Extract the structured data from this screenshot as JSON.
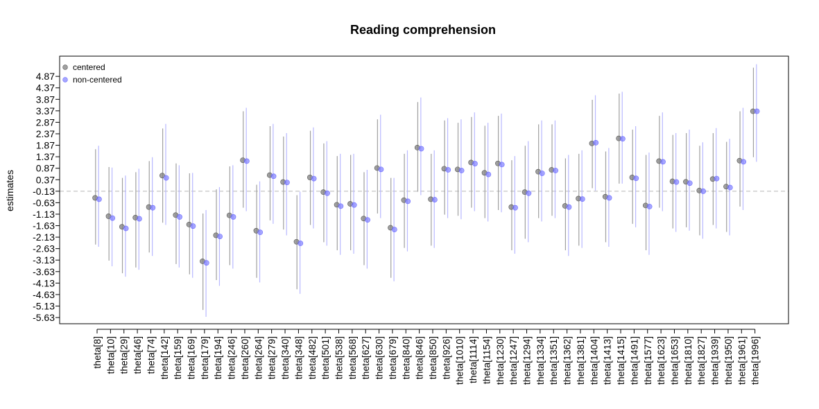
{
  "chart_data": {
    "type": "scatter",
    "title": "Reading comprehension",
    "xlabel": "",
    "ylabel": "estimates",
    "ylim": [
      -5.9,
      5.75
    ],
    "yticks": [
      "-5.63",
      "-5.13",
      "-4.63",
      "-4.13",
      "-3.63",
      "-3.13",
      "-2.63",
      "-2.13",
      "-1.63",
      "-1.13",
      "-0.63",
      "-0.13",
      "0.37",
      "0.87",
      "1.37",
      "1.87",
      "2.37",
      "2.87",
      "3.37",
      "3.87",
      "4.37",
      "4.87"
    ],
    "reference_line": -0.13,
    "legend_position": "top-left",
    "categories": [
      "theta[8]",
      "theta[10]",
      "theta[29]",
      "theta[46]",
      "theta[74]",
      "theta[142]",
      "theta[159]",
      "theta[169]",
      "theta[179]",
      "theta[194]",
      "theta[246]",
      "theta[260]",
      "theta[264]",
      "theta[279]",
      "theta[340]",
      "theta[348]",
      "theta[482]",
      "theta[501]",
      "theta[538]",
      "theta[568]",
      "theta[627]",
      "theta[630]",
      "theta[679]",
      "theta[840]",
      "theta[846]",
      "theta[850]",
      "theta[926]",
      "theta[1010]",
      "theta[1114]",
      "theta[1154]",
      "theta[1230]",
      "theta[1247]",
      "theta[1294]",
      "theta[1334]",
      "theta[1351]",
      "theta[1362]",
      "theta[1381]",
      "theta[1404]",
      "theta[1413]",
      "theta[1415]",
      "theta[1491]",
      "theta[1577]",
      "theta[1623]",
      "theta[1653]",
      "theta[1810]",
      "theta[1827]",
      "theta[1939]",
      "theta[1950]",
      "theta[1961]",
      "theta[1996]"
    ],
    "series": [
      {
        "name": "centered",
        "color": "#808080",
        "values": [
          -0.42,
          -1.22,
          -1.68,
          -1.28,
          -0.82,
          0.55,
          -1.17,
          -1.58,
          -3.18,
          -2.05,
          -1.18,
          1.22,
          -1.85,
          0.57,
          0.27,
          -2.33,
          0.47,
          -0.17,
          -0.72,
          -0.68,
          -1.32,
          0.88,
          -1.72,
          -0.52,
          1.77,
          -0.48,
          0.85,
          0.82,
          1.12,
          0.67,
          1.08,
          -0.82,
          -0.17,
          0.72,
          0.8,
          -0.77,
          -0.45,
          1.95,
          -0.37,
          2.17,
          0.47,
          -0.75,
          1.18,
          0.3,
          0.28,
          -0.1,
          0.4,
          0.07,
          1.2,
          3.35
        ],
        "lower": [
          -2.45,
          -3.15,
          -3.7,
          -3.45,
          -2.8,
          -1.5,
          -3.3,
          -3.75,
          -5.3,
          -4.0,
          -3.35,
          -0.85,
          -3.9,
          -1.4,
          -1.8,
          -4.4,
          -1.6,
          -2.35,
          -2.7,
          -2.7,
          -3.35,
          -1.1,
          -3.9,
          -2.6,
          -0.15,
          -2.5,
          -1.15,
          -1.2,
          -0.85,
          -1.3,
          -0.95,
          -2.7,
          -2.2,
          -1.3,
          -1.2,
          -2.7,
          -2.5,
          0.0,
          -2.35,
          0.2,
          -1.55,
          -2.7,
          -0.85,
          -1.75,
          -1.7,
          -2.05,
          -1.6,
          -1.9,
          -0.8,
          1.35
        ],
        "upper": [
          1.7,
          0.92,
          0.45,
          0.7,
          1.18,
          2.6,
          1.08,
          0.65,
          -1.1,
          -0.05,
          0.95,
          3.35,
          0.15,
          2.7,
          2.25,
          -0.3,
          2.5,
          1.95,
          1.4,
          1.45,
          0.7,
          3.0,
          0.45,
          1.5,
          3.75,
          1.5,
          2.95,
          2.85,
          3.1,
          2.72,
          3.15,
          1.22,
          1.85,
          2.78,
          2.78,
          1.3,
          1.5,
          3.85,
          1.6,
          4.12,
          2.55,
          1.45,
          3.15,
          2.32,
          2.4,
          1.85,
          2.4,
          2.02,
          3.35,
          5.25
        ]
      },
      {
        "name": "non-centered",
        "color": "#6b6bff",
        "values": [
          -0.48,
          -1.3,
          -1.75,
          -1.33,
          -0.85,
          0.45,
          -1.25,
          -1.65,
          -3.25,
          -2.1,
          -1.25,
          1.18,
          -1.92,
          0.52,
          0.25,
          -2.4,
          0.42,
          -0.22,
          -0.78,
          -0.73,
          -1.38,
          0.82,
          -1.8,
          -0.57,
          1.72,
          -0.5,
          0.8,
          0.77,
          1.07,
          0.6,
          1.03,
          -0.85,
          -0.22,
          0.65,
          0.77,
          -0.82,
          -0.47,
          1.98,
          -0.42,
          2.15,
          0.43,
          -0.8,
          1.15,
          0.27,
          0.22,
          -0.13,
          0.42,
          0.03,
          1.15,
          3.35
        ],
        "lower": [
          -2.55,
          -3.4,
          -3.85,
          -3.55,
          -2.95,
          -1.6,
          -3.45,
          -3.9,
          -5.6,
          -4.25,
          -3.5,
          -1.0,
          -4.1,
          -1.55,
          -2.05,
          -4.6,
          -1.75,
          -2.5,
          -2.9,
          -2.85,
          -3.5,
          -1.3,
          -4.05,
          -2.75,
          -0.3,
          -2.6,
          -1.3,
          -1.35,
          -1.0,
          -1.45,
          -1.05,
          -2.85,
          -2.35,
          -1.45,
          -1.3,
          -2.95,
          -2.6,
          -0.1,
          -2.55,
          0.2,
          -1.7,
          -2.9,
          -1.0,
          -1.9,
          -1.85,
          -2.2,
          -1.75,
          -2.05,
          -0.95,
          1.15
        ],
        "upper": [
          1.85,
          0.9,
          0.55,
          0.85,
          1.35,
          2.8,
          1.0,
          0.67,
          -0.95,
          0.05,
          1.0,
          3.5,
          0.3,
          2.8,
          2.4,
          -0.15,
          2.65,
          2.05,
          1.5,
          1.5,
          0.8,
          3.2,
          0.45,
          1.65,
          3.95,
          1.65,
          3.05,
          3.0,
          3.3,
          2.85,
          3.25,
          1.4,
          2.05,
          2.95,
          2.95,
          1.45,
          1.65,
          4.05,
          1.75,
          4.2,
          2.7,
          1.55,
          3.3,
          2.4,
          2.55,
          2.0,
          2.62,
          2.15,
          3.5,
          5.4
        ]
      }
    ]
  }
}
